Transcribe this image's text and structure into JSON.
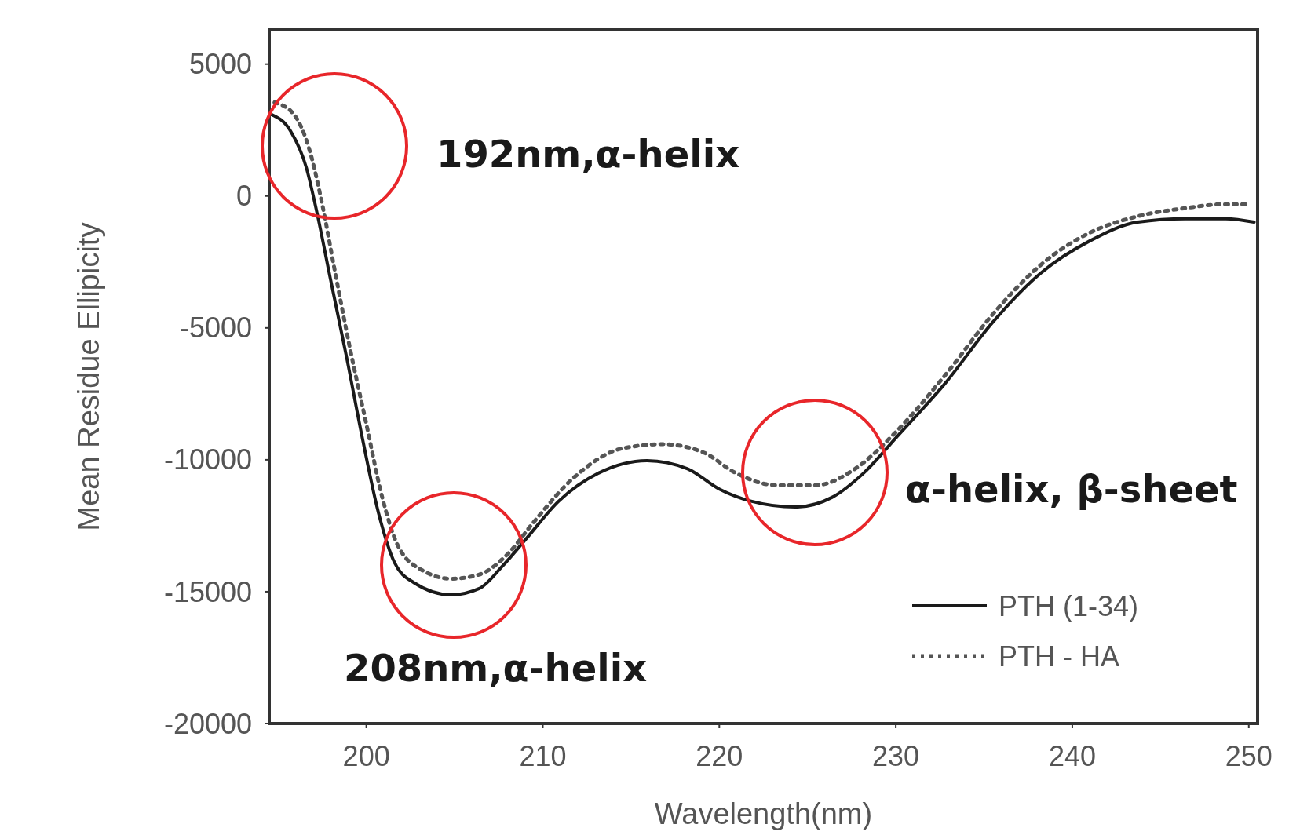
{
  "chart_data": {
    "type": "line",
    "xlabel": "Wavelength(nm)",
    "ylabel": "Mean Residue Ellipicity",
    "xlim": [
      194.5,
      250.5
    ],
    "xticks": [
      200,
      210,
      220,
      230,
      240,
      250
    ],
    "ylim": [
      -20000,
      6300
    ],
    "yticks": [
      -20000,
      -15000,
      -10000,
      -5000,
      0,
      5000
    ],
    "grid": false,
    "legend": "bottom right",
    "marker": "none",
    "series": [
      {
        "name": "PTH (1-34)",
        "color": "#1a1a1a",
        "line_style": "solid",
        "x": [
          194.6,
          195.7,
          196.6,
          197.2,
          197.95,
          198.9,
          199.8,
          200.7,
          201.6,
          202.7,
          204.8,
          206.4,
          207.7,
          209.1,
          210.9,
          213.2,
          215.9,
          218.2,
          220.0,
          221.8,
          224.3,
          226.4,
          228.2,
          230.1,
          232.8,
          235.5,
          238.2,
          241.0,
          243.7,
          246.4,
          248.7,
          250.3
        ],
        "values": [
          3100,
          2470,
          1080,
          -620,
          -3090,
          -6170,
          -9260,
          -12040,
          -13900,
          -14660,
          -15120,
          -14880,
          -14040,
          -12960,
          -11570,
          -10490,
          -10030,
          -10340,
          -11110,
          -11570,
          -11790,
          -11420,
          -10490,
          -9100,
          -7100,
          -4780,
          -2930,
          -1700,
          -990,
          -860,
          -860,
          -990
        ]
      },
      {
        "name": "PTH - HA",
        "color": "#555555",
        "line_style": "dotted",
        "x": [
          194.8,
          195.9,
          196.8,
          197.5,
          198.2,
          199.1,
          200.0,
          200.9,
          201.8,
          203.2,
          204.8,
          206.4,
          208.0,
          209.5,
          211.8,
          214.5,
          216.8,
          219.1,
          220.9,
          223.2,
          225.5,
          227.7,
          230.0,
          232.8,
          235.5,
          238.2,
          241.0,
          243.7,
          246.4,
          248.7,
          250.0
        ],
        "values": [
          3550,
          3090,
          1700,
          -310,
          -2780,
          -5860,
          -8640,
          -11420,
          -13270,
          -14200,
          -14510,
          -14350,
          -13580,
          -12350,
          -10650,
          -9570,
          -9410,
          -9720,
          -10490,
          -10960,
          -10960,
          -10340,
          -8950,
          -6790,
          -4480,
          -2620,
          -1390,
          -770,
          -460,
          -310,
          -310
        ]
      }
    ],
    "annotations": [
      "192nm,α-helix",
      "208nm,α-helix",
      "α-helix, β-sheet"
    ]
  }
}
